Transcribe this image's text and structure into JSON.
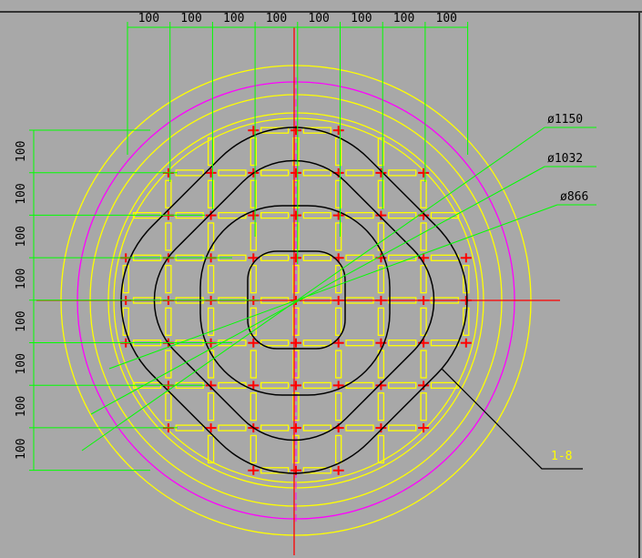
{
  "top_dimensions": [
    "100",
    "100",
    "100",
    "100",
    "100",
    "100",
    "100",
    "100"
  ],
  "left_dimensions": [
    "100",
    "100",
    "100",
    "100",
    "100",
    "100",
    "100",
    "100"
  ],
  "diameters": [
    "ø1150",
    "ø1032",
    "ø866"
  ],
  "callout": "1-8"
}
